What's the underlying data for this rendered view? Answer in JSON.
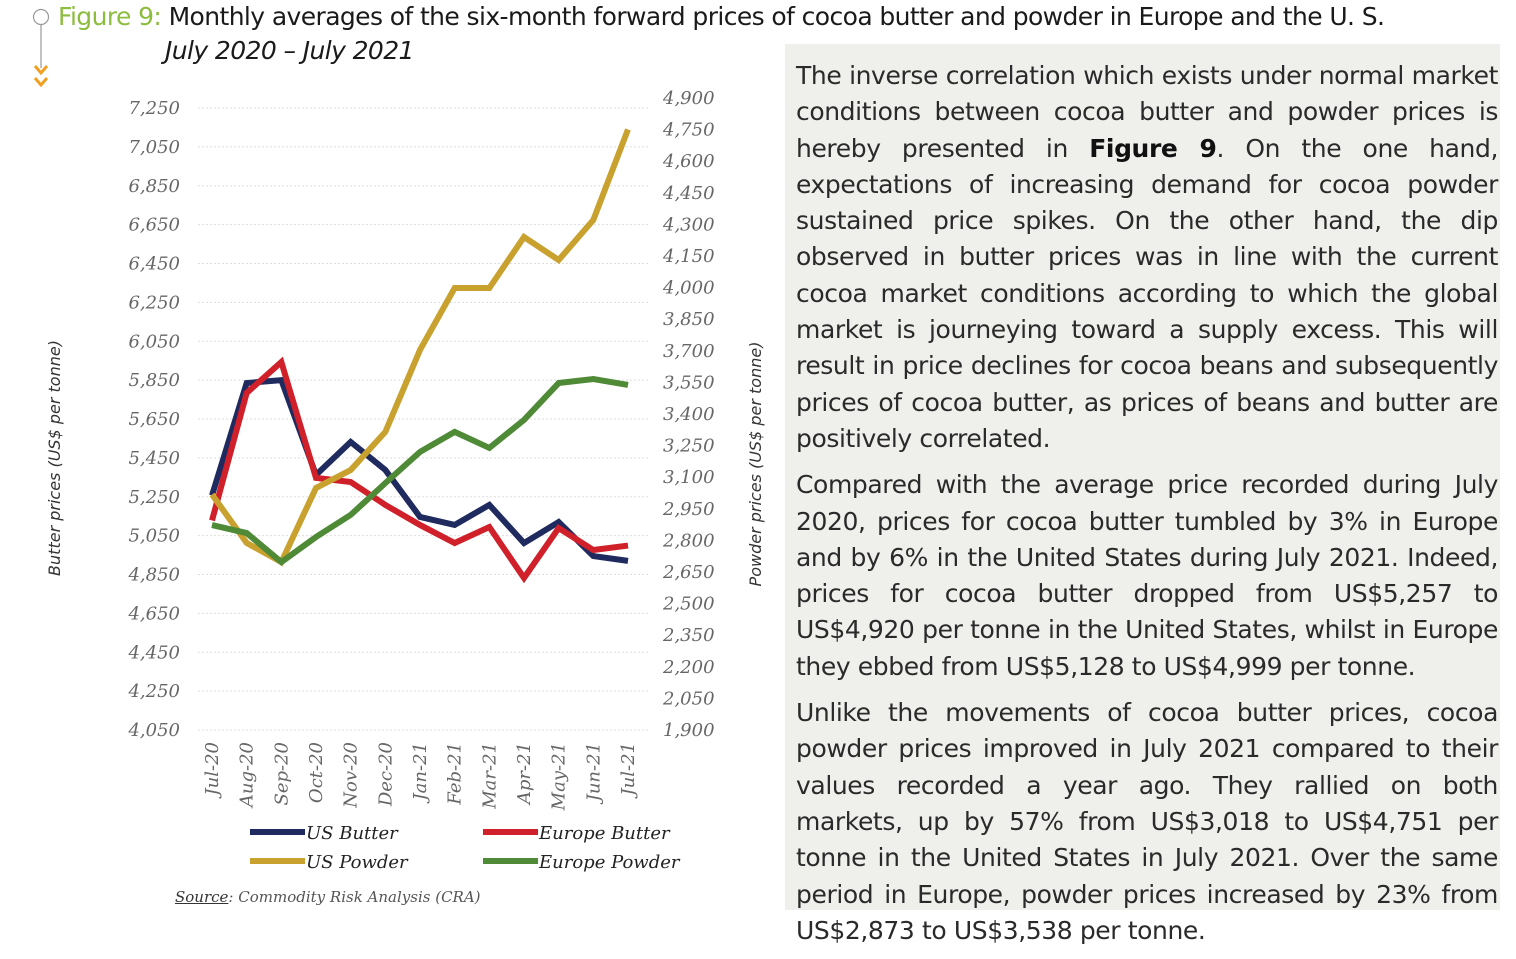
{
  "figure": {
    "label": "Figure 9:",
    "title": "Monthly averages of the six-month forward prices of cocoa butter and powder in Europe and the U. S.",
    "subtitle": "July 2020 – July 2021",
    "source_label": "Source",
    "source_text": ": Commodity Risk Analysis (CRA)"
  },
  "chart_data": {
    "type": "line",
    "categories": [
      "Jul-20",
      "Aug-20",
      "Sep-20",
      "Oct-20",
      "Nov-20",
      "Dec-20",
      "Jan-21",
      "Feb-21",
      "Mar-21",
      "Apr-21",
      "May-21",
      "Jun-21",
      "Jul-21"
    ],
    "ylabel_left": "Butter prices (US$ per tonne)",
    "ylabel_right": "Powder prices (US$ per tonne)",
    "ylim_left": [
      4050,
      7250
    ],
    "yticks_left": [
      "4,050",
      "4,250",
      "4,450",
      "4,650",
      "4,850",
      "5,050",
      "5,250",
      "5,450",
      "5,650",
      "5,850",
      "6,050",
      "6,250",
      "6,450",
      "6,650",
      "6,850",
      "7,050",
      "7,250"
    ],
    "ylim_right": [
      1900,
      4900
    ],
    "yticks_right": [
      "1,900",
      "2,050",
      "2,200",
      "2,350",
      "2,500",
      "2,650",
      "2,800",
      "2,950",
      "3,100",
      "3,250",
      "3,400",
      "3,550",
      "3,700",
      "3,850",
      "4,000",
      "4,150",
      "4,300",
      "4,450",
      "4,600",
      "4,750",
      "4,900"
    ],
    "grid": true,
    "legend_position": "bottom",
    "series": [
      {
        "name": "US Butter",
        "axis": "left",
        "color": "#1f2a5e",
        "values": [
          5257,
          5835,
          5850,
          5362,
          5532,
          5388,
          5146,
          5105,
          5208,
          5012,
          5120,
          4945,
          4920
        ]
      },
      {
        "name": "Europe Butter",
        "axis": "left",
        "color": "#d0202a",
        "values": [
          5128,
          5784,
          5943,
          5347,
          5326,
          5208,
          5105,
          5012,
          5094,
          4832,
          5089,
          4976,
          4999
        ]
      },
      {
        "name": "US Powder",
        "axis": "right",
        "color": "#c9a12f",
        "values": [
          3018,
          2788,
          2697,
          3049,
          3134,
          3315,
          3704,
          3998,
          3998,
          4240,
          4131,
          4321,
          4751
        ]
      },
      {
        "name": "Europe Powder",
        "axis": "right",
        "color": "#4f8a37",
        "values": [
          2873,
          2835,
          2697,
          2816,
          2921,
          3072,
          3220,
          3315,
          3239,
          3372,
          3547,
          3566,
          3538
        ]
      }
    ]
  },
  "text": {
    "p1_a": "The inverse correlation which exists under normal market conditions between cocoa butter and powder prices is hereby presented in ",
    "p1_bold": "Figure 9",
    "p1_b": ". On the one hand, expectations of increasing demand for cocoa powder sustained price spikes. On the other hand, the dip observed in butter prices was in line with the current cocoa market conditions according to which the global market is journeying toward a supply excess. This will result in price declines for cocoa beans and subsequently prices of cocoa butter, as prices of beans and butter are positively correlated.",
    "p2": "Compared with the average price recorded during July 2020, prices for cocoa butter tumbled by 3% in Europe and by 6% in the United States during July 2021. Indeed, prices for cocoa butter dropped from US$5,257 to US$4,920 per tonne in the United States, whilst in Europe they ebbed from US$5,128 to US$4,999 per tonne.",
    "p3": "Unlike the movements of cocoa butter prices, cocoa powder prices improved in July 2021 compared to their values recorded a year ago. They rallied on both markets, up by 57% from US$3,018 to US$4,751 per tonne in the United States in July 2021. Over the same period in Europe, powder prices increased by 23% from US$2,873 to US$3,538 per tonne."
  }
}
